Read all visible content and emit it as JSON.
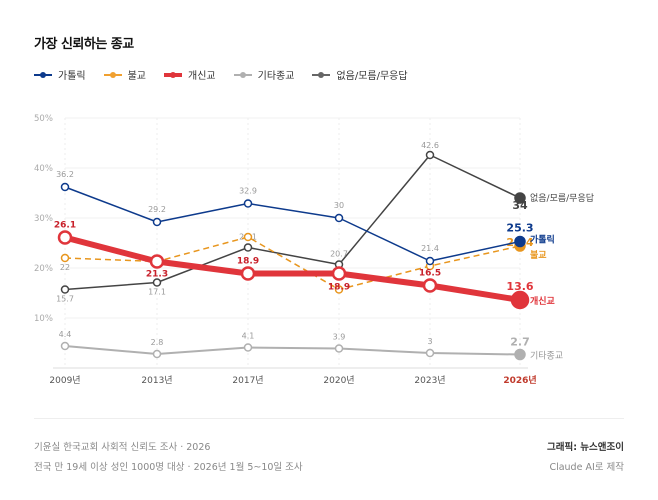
{
  "title": "가장 신뢰하는 종교",
  "legend": [
    {
      "label": "가톨릭",
      "color": "#0d3a8c"
    },
    {
      "label": "불교",
      "color": "#f0a030"
    },
    {
      "label": "개신교",
      "color": "#e0353b"
    },
    {
      "label": "기타종교",
      "color": "#b0b0b0"
    },
    {
      "label": "없음/모름/무응답",
      "color": "#555555"
    }
  ],
  "chart_data": {
    "type": "line",
    "title": "가장 신뢰하는 종교",
    "categories": [
      "2009년",
      "2013년",
      "2017년",
      "2020년",
      "2023년",
      "2026년"
    ],
    "y_ticks": [
      "10%",
      "20%",
      "30%",
      "40%",
      "50%"
    ],
    "ylim": [
      0,
      50
    ],
    "grid": true,
    "legend_position": "top-left",
    "series": [
      {
        "name": "가톨릭",
        "color": "#0d3a8c",
        "style": "solid",
        "values": [
          36.2,
          29.2,
          32.9,
          30,
          21.4,
          25.3
        ],
        "labels": [
          "36.2",
          "29.2",
          "32.9",
          "30",
          "21.4",
          "25.3"
        ]
      },
      {
        "name": "불교",
        "color": "#e8961e",
        "style": "dashed",
        "values": [
          22,
          21.3,
          26.2,
          15.7,
          20.4,
          24.4
        ],
        "labels": [
          "22",
          "",
          "",
          "",
          "",
          "24.4"
        ]
      },
      {
        "name": "개신교",
        "color": "#e0353b",
        "style": "thick",
        "values": [
          26.1,
          21.3,
          18.9,
          18.9,
          16.5,
          13.6
        ],
        "labels": [
          "26.1",
          "21.3",
          "18.9",
          "18.9",
          "16.5",
          "13.6"
        ]
      },
      {
        "name": "기타종교",
        "color": "#b0b0b0",
        "style": "solid",
        "values": [
          4.4,
          2.8,
          4.1,
          3.9,
          3,
          2.7
        ],
        "labels": [
          "4.4",
          "2.8",
          "4.1",
          "3.9",
          "3",
          "2.7"
        ]
      },
      {
        "name": "없음/모름/무응답",
        "color": "#444444",
        "style": "solid",
        "values": [
          15.7,
          17.1,
          24.1,
          20.7,
          42.6,
          34
        ],
        "labels": [
          "15.7",
          "17.1",
          "24.1",
          "20.7",
          "42.6",
          "34"
        ]
      }
    ],
    "highlight_category": "2026년"
  },
  "footer": {
    "source": "기윤실 한국교회 사회적 신뢰도 조사 · 2026",
    "method": "전국 만 19세 이상 성인 1000명 대상 · 2026년 1월 5~10일 조사",
    "credit": "그래픽: 뉴스앤조이",
    "made_with": "Claude AI로 제작"
  }
}
